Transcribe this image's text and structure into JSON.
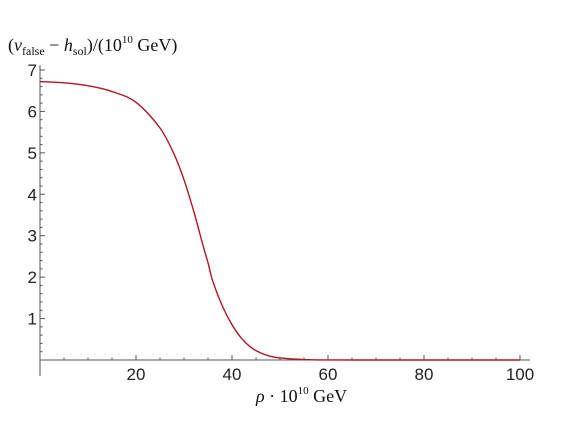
{
  "chart_data": {
    "type": "line",
    "ylabel_parts": {
      "lead": "(",
      "v": "v",
      "v_sub": "false",
      "minus": " − ",
      "h": "h",
      "h_sub": "sol",
      "mid": ")/(10",
      "exp": "10",
      "tail": " GeV)"
    },
    "xlabel_parts": {
      "rho": "ρ",
      "mid": " · 10",
      "exp": "10",
      "tail": " GeV"
    },
    "xlim": [
      0,
      100
    ],
    "ylim": [
      0,
      7
    ],
    "x_ticks": [
      "20",
      "40",
      "60",
      "80",
      "100"
    ],
    "y_ticks": [
      "1",
      "2",
      "3",
      "4",
      "5",
      "6",
      "7"
    ],
    "grid": false,
    "series": [
      {
        "color": "#b0161e",
        "x": [
          0,
          5,
          10,
          15,
          20,
          25,
          28,
          30,
          32,
          34,
          35,
          36,
          38,
          40,
          42,
          44,
          46,
          48,
          50,
          55,
          60,
          70,
          80,
          90,
          100
        ],
        "y": [
          6.72,
          6.69,
          6.62,
          6.48,
          6.22,
          5.6,
          4.95,
          4.35,
          3.6,
          2.75,
          2.35,
          1.9,
          1.3,
          0.85,
          0.52,
          0.3,
          0.17,
          0.09,
          0.05,
          0.01,
          0.002,
          0,
          0,
          0,
          0
        ]
      }
    ]
  }
}
